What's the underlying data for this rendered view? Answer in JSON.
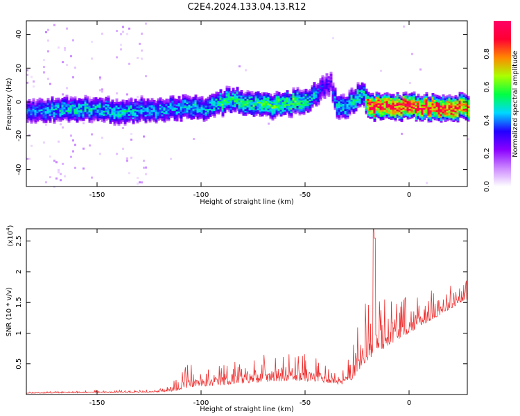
{
  "title": "C2E4.2024.133.04.13.R12",
  "chart_data": [
    {
      "type": "heatmap",
      "xlabel": "Height of straight line (km)",
      "ylabel": "Frequency (Hz)",
      "xlim": [
        -184,
        28
      ],
      "ylim": [
        -50,
        48
      ],
      "xticks": [
        -150,
        -100,
        -50,
        0
      ],
      "yticks": [
        -40,
        -20,
        0,
        20,
        40
      ],
      "colorbar": {
        "label": "Normalized spectral amplitude",
        "range": [
          0,
          1
        ],
        "ticks": [
          0.0,
          0.2,
          0.4,
          0.6,
          0.8
        ],
        "colors": [
          "#ffffff",
          "#cc88ff",
          "#8a00ff",
          "#2200ff",
          "#00d8ff",
          "#00ff44",
          "#aaff00",
          "#ff8800",
          "#ff0033",
          "#ff0066"
        ]
      },
      "ridge": {
        "x": [
          -184,
          -175,
          -165,
          -155,
          -145,
          -135,
          -125,
          -115,
          -105,
          -100,
          -95,
          -90,
          -85,
          -80,
          -75,
          -70,
          -65,
          -60,
          -55,
          -50,
          -45,
          -42,
          -40,
          -38,
          -35,
          -30,
          -25,
          -22,
          -20,
          -18,
          -15,
          -10,
          -5,
          0,
          5,
          10,
          15,
          20,
          28
        ],
        "y": [
          -6,
          -5,
          -4,
          -4,
          -5,
          -5,
          -5,
          -4,
          -3,
          -4,
          -2,
          0,
          2,
          0,
          -1,
          -2,
          -2,
          -1,
          0,
          1,
          5,
          8,
          10,
          11,
          -4,
          -2,
          3,
          5,
          -2,
          -3,
          -2,
          -3,
          -3,
          -2,
          -3,
          -3,
          -3,
          -3,
          -3
        ],
        "strength": [
          0.35,
          0.4,
          0.45,
          0.45,
          0.45,
          0.45,
          0.4,
          0.4,
          0.45,
          0.4,
          0.45,
          0.5,
          0.5,
          0.5,
          0.5,
          0.5,
          0.55,
          0.5,
          0.55,
          0.5,
          0.4,
          0.3,
          0.3,
          0.25,
          0.45,
          0.45,
          0.5,
          0.45,
          0.85,
          0.9,
          0.85,
          0.85,
          0.85,
          0.9,
          0.85,
          0.85,
          0.85,
          0.85,
          0.8
        ]
      }
    },
    {
      "type": "line",
      "xlabel": "Height of straight line (km)",
      "ylabel": "SNR (10 * v/v)",
      "y_multiplier": "(x10",
      "y_multiplier_exp": "4",
      "y_multiplier_close": ")",
      "xlim": [
        -184,
        28
      ],
      "ylim": [
        0,
        2.7
      ],
      "xticks": [
        -150,
        -100,
        -50,
        0
      ],
      "yticks": [
        0.5,
        1.0,
        1.5,
        2.0,
        2.5
      ],
      "line_color": "#ee3333",
      "envelope": {
        "x": [
          -184,
          -150,
          -130,
          -120,
          -112,
          -108,
          -100,
          -90,
          -80,
          -70,
          -60,
          -50,
          -42,
          -36,
          -30,
          -26,
          -22,
          -18,
          -16,
          -14,
          -10,
          -5,
          0,
          5,
          10,
          15,
          20,
          25,
          28
        ],
        "base": [
          0.02,
          0.03,
          0.03,
          0.04,
          0.06,
          0.1,
          0.12,
          0.15,
          0.18,
          0.2,
          0.22,
          0.22,
          0.2,
          0.18,
          0.15,
          0.3,
          0.5,
          0.6,
          0.7,
          0.7,
          0.8,
          0.9,
          1.0,
          1.1,
          1.2,
          1.3,
          1.4,
          1.5,
          1.55
        ],
        "amp": [
          0.02,
          0.04,
          0.04,
          0.05,
          0.2,
          0.45,
          0.3,
          0.35,
          0.4,
          0.45,
          0.45,
          0.45,
          0.35,
          0.3,
          0.3,
          0.9,
          1.0,
          1.1,
          1.0,
          0.9,
          0.8,
          0.7,
          0.6,
          0.55,
          0.5,
          0.4,
          0.4,
          0.35,
          0.35
        ]
      },
      "spikes": [
        {
          "x": -17,
          "y": 2.7
        },
        {
          "x": -16.5,
          "y": 2.55
        }
      ]
    }
  ]
}
